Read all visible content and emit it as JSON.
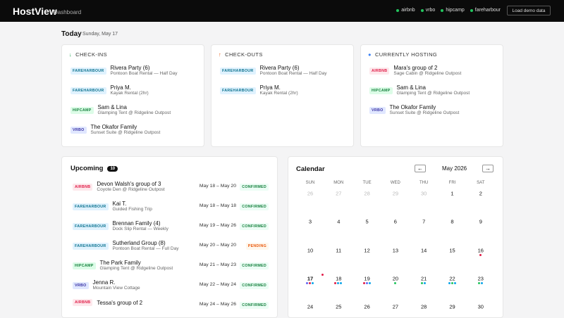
{
  "header": {
    "brand": "HostView",
    "section": "Dashboard",
    "platforms": [
      {
        "name": "airbnb",
        "color": "#22c55e"
      },
      {
        "name": "vrbo",
        "color": "#22c55e"
      },
      {
        "name": "hipcamp",
        "color": "#22c55e"
      },
      {
        "name": "fareharbour",
        "color": "#22c55e"
      }
    ],
    "button": "Load demo data"
  },
  "today": {
    "title": "Today",
    "date": "Sunday, May 17"
  },
  "panels": [
    {
      "icon": "↓",
      "icon_color": "#16a34a",
      "title": "CHECK-INS",
      "rows": [
        {
          "platform": "FAREHARBOUR",
          "name": "Rivera Party (6)",
          "detail": "Pontoon Boat Rental — Half Day"
        },
        {
          "platform": "FAREHARBOUR",
          "name": "Priya M.",
          "detail": "Kayak Rental (2hr)"
        },
        {
          "platform": "HIPCAMP",
          "name": "Sam & Lina",
          "detail": "Glamping Tent @ Ridgeline Outpost"
        },
        {
          "platform": "VRBO",
          "name": "The Okafor Family",
          "detail": "Sunset Suite @ Ridgeline Outpost"
        }
      ]
    },
    {
      "icon": "↑",
      "icon_color": "#ea580c",
      "title": "CHECK-OUTS",
      "rows": [
        {
          "platform": "FAREHARBOUR",
          "name": "Rivera Party (6)",
          "detail": "Pontoon Boat Rental — Half Day"
        },
        {
          "platform": "FAREHARBOUR",
          "name": "Priya M.",
          "detail": "Kayak Rental (2hr)"
        }
      ]
    },
    {
      "icon": "●",
      "icon_color": "#3b82f6",
      "title": "CURRENTLY HOSTING",
      "rows": [
        {
          "platform": "AIRBNB",
          "name": "Mara's group of 2",
          "detail": "Sage Cabin @ Ridgeline Outpost"
        },
        {
          "platform": "HIPCAMP",
          "name": "Sam & Lina",
          "detail": "Glamping Tent @ Ridgeline Outpost"
        },
        {
          "platform": "VRBO",
          "name": "The Okafor Family",
          "detail": "Sunset Suite @ Ridgeline Outpost"
        }
      ]
    }
  ],
  "upcoming": {
    "title": "Upcoming",
    "count": 10,
    "rows": [
      {
        "platform": "AIRBNB",
        "name": "Devon Walsh's group of 3",
        "detail": "Coyote Den @ Ridgeline Outpost",
        "dates": "May 18 – May 20",
        "status": "CONFIRMED"
      },
      {
        "platform": "FAREHARBOUR",
        "name": "Kai T.",
        "detail": "Guided Fishing Trip",
        "dates": "May 18 – May 18",
        "status": "CONFIRMED"
      },
      {
        "platform": "FAREHARBOUR",
        "name": "Brennan Family (4)",
        "detail": "Dock Slip Rental — Weekly",
        "dates": "May 19 – May 26",
        "status": "CONFIRMED"
      },
      {
        "platform": "FAREHARBOUR",
        "name": "Sutherland Group (8)",
        "detail": "Pontoon Boat Rental — Full Day",
        "dates": "May 20 – May 20",
        "status": "PENDING"
      },
      {
        "platform": "HIPCAMP",
        "name": "The Park Family",
        "detail": "Glamping Tent @ Ridgeline Outpost",
        "dates": "May 21 – May 23",
        "status": "CONFIRMED"
      },
      {
        "platform": "VRBO",
        "name": "Jenna R.",
        "detail": "Mountain View Cottage",
        "dates": "May 22 – May 24",
        "status": "CONFIRMED"
      },
      {
        "platform": "AIRBNB",
        "name": "Tessa's group of 2",
        "detail": "",
        "dates": "May 24 – May 26",
        "status": "CONFIRMED"
      }
    ]
  },
  "calendar": {
    "title": "Calendar",
    "prev": "←",
    "next": "→",
    "month": "May 2026",
    "weekdays": [
      "SUN",
      "MON",
      "TUE",
      "WED",
      "THU",
      "FRI",
      "SAT"
    ],
    "days": [
      {
        "label": 26,
        "muted": true
      },
      {
        "label": 27,
        "muted": true
      },
      {
        "label": 28,
        "muted": true
      },
      {
        "label": 29,
        "muted": true
      },
      {
        "label": 30,
        "muted": true
      },
      {
        "label": 1
      },
      {
        "label": 2
      },
      {
        "label": 3
      },
      {
        "label": 4
      },
      {
        "label": 5
      },
      {
        "label": 6
      },
      {
        "label": 7
      },
      {
        "label": 8
      },
      {
        "label": 9
      },
      {
        "label": 10
      },
      {
        "label": 11
      },
      {
        "label": 12
      },
      {
        "label": 13
      },
      {
        "label": 14
      },
      {
        "label": 15
      },
      {
        "label": 16,
        "dots": [
          "#e11d48"
        ]
      },
      {
        "label": 17,
        "today": true,
        "dots": [
          "#6366f1",
          "#e11d48",
          "#0ea5e9"
        ]
      },
      {
        "label": 18,
        "dots": [
          "#e11d48",
          "#0ea5e9",
          "#0ea5e9"
        ]
      },
      {
        "label": 19,
        "dots": [
          "#e11d48",
          "#6366f1",
          "#0ea5e9"
        ]
      },
      {
        "label": 20,
        "dots": [
          "#22c55e"
        ]
      },
      {
        "label": 21,
        "dots": [
          "#22c55e",
          "#0ea5e9"
        ]
      },
      {
        "label": 22,
        "dots": [
          "#0ea5e9",
          "#22c55e",
          "#0ea5e9"
        ]
      },
      {
        "label": 23,
        "dots": [
          "#22c55e",
          "#0ea5e9"
        ]
      },
      {
        "label": 24
      },
      {
        "label": 25
      },
      {
        "label": 26
      },
      {
        "label": 27
      },
      {
        "label": 28
      },
      {
        "label": 29
      },
      {
        "label": 30
      }
    ]
  }
}
